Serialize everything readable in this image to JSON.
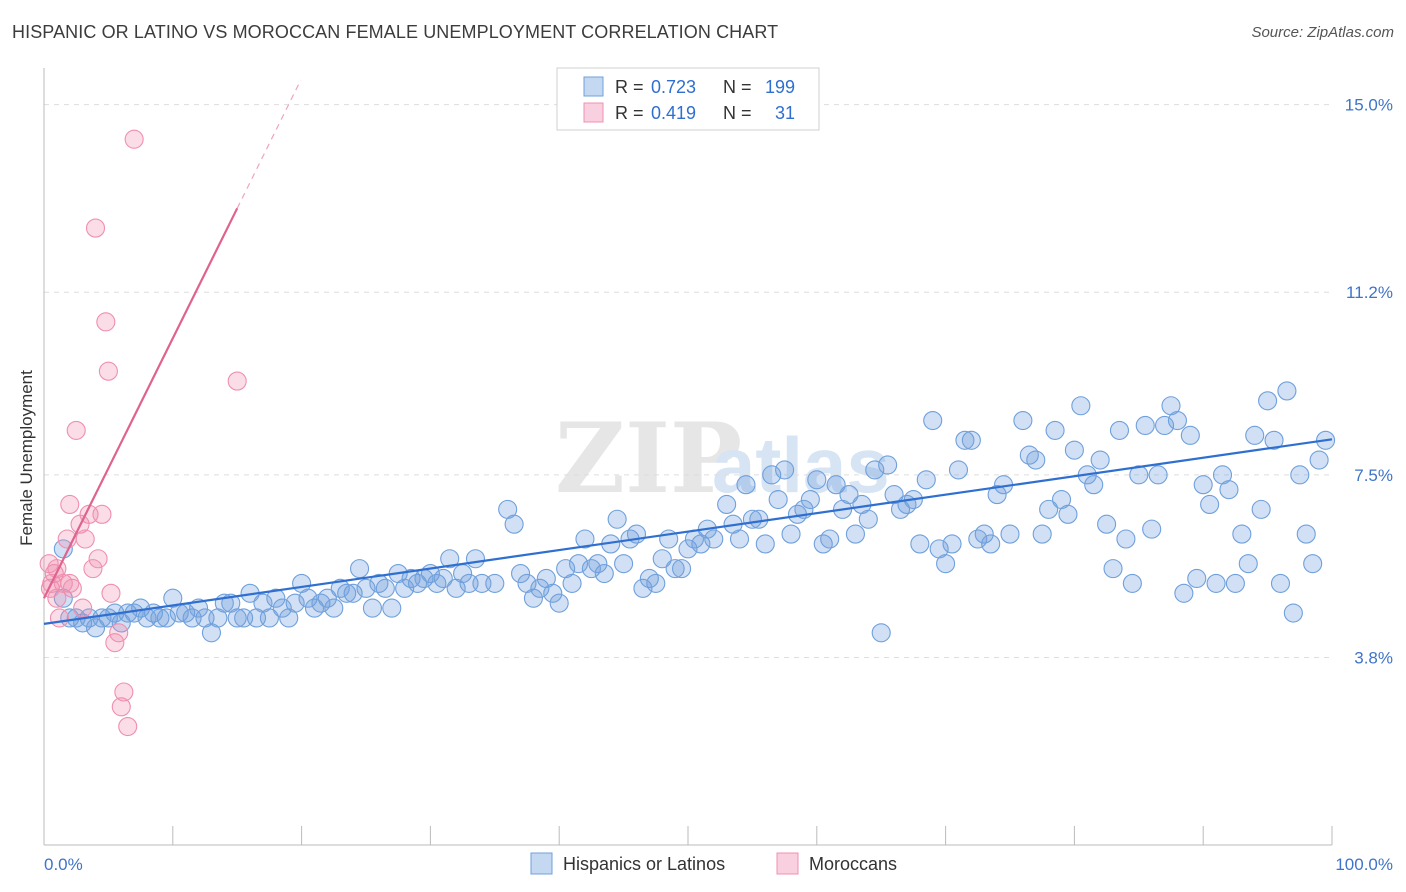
{
  "chart_data": {
    "type": "scatter",
    "title": "HISPANIC OR LATINO VS MOROCCAN FEMALE UNEMPLOYMENT CORRELATION CHART",
    "source": "Source: ZipAtlas.com",
    "ylabel": "Female Unemployment",
    "xlabel": "",
    "x_tick_labels": [
      "0.0%",
      "100.0%"
    ],
    "y_tick_labels": [
      "3.8%",
      "7.5%",
      "11.2%",
      "15.0%"
    ],
    "y_tick_values": [
      3.8,
      7.5,
      11.2,
      15.0
    ],
    "xlim": [
      0,
      100
    ],
    "ylim": [
      0,
      15.5
    ],
    "watermark": {
      "zip": "ZIP",
      "atlas": "atlas"
    },
    "legend": {
      "r_label": "R =",
      "n_label": "N =",
      "rows": [
        {
          "r": "0.723",
          "n": "199",
          "color": "#6fa0dc"
        },
        {
          "r": "0.419",
          "n": "31",
          "color": "#f08fb0"
        }
      ]
    },
    "series": [
      {
        "name": "Hispanics or Latinos",
        "color": "#6fa0dc",
        "line_color": "#2f6fd0",
        "trend": {
          "x0": 0,
          "y0": 4.48,
          "x1": 100,
          "y1": 8.22
        },
        "points": [
          [
            1.5,
            5.0
          ],
          [
            1.5,
            6.0
          ],
          [
            2,
            4.6
          ],
          [
            2.5,
            4.6
          ],
          [
            3,
            4.5
          ],
          [
            3.5,
            4.6
          ],
          [
            4,
            4.4
          ],
          [
            4.5,
            4.6
          ],
          [
            5,
            4.6
          ],
          [
            5.5,
            4.7
          ],
          [
            6,
            4.5
          ],
          [
            6.5,
            4.7
          ],
          [
            7,
            4.7
          ],
          [
            7.5,
            4.8
          ],
          [
            8,
            4.6
          ],
          [
            8.5,
            4.7
          ],
          [
            9,
            4.6
          ],
          [
            9.5,
            4.6
          ],
          [
            10,
            5.0
          ],
          [
            10.5,
            4.7
          ],
          [
            11,
            4.7
          ],
          [
            11.5,
            4.6
          ],
          [
            12,
            4.8
          ],
          [
            12.5,
            4.6
          ],
          [
            13,
            4.3
          ],
          [
            13.5,
            4.6
          ],
          [
            14,
            4.9
          ],
          [
            14.5,
            4.9
          ],
          [
            15,
            4.6
          ],
          [
            15.5,
            4.6
          ],
          [
            16,
            5.1
          ],
          [
            16.5,
            4.6
          ],
          [
            17,
            4.9
          ],
          [
            17.5,
            4.6
          ],
          [
            18,
            5.0
          ],
          [
            18.5,
            4.8
          ],
          [
            19,
            4.6
          ],
          [
            19.5,
            4.9
          ],
          [
            20,
            5.3
          ],
          [
            20.5,
            5.0
          ],
          [
            21,
            4.8
          ],
          [
            21.5,
            4.9
          ],
          [
            22,
            5.0
          ],
          [
            22.5,
            4.8
          ],
          [
            23,
            5.2
          ],
          [
            23.5,
            5.1
          ],
          [
            24,
            5.1
          ],
          [
            24.5,
            5.6
          ],
          [
            25,
            5.2
          ],
          [
            25.5,
            4.8
          ],
          [
            26,
            5.3
          ],
          [
            26.5,
            5.2
          ],
          [
            27,
            4.8
          ],
          [
            27.5,
            5.5
          ],
          [
            28,
            5.2
          ],
          [
            28.5,
            5.4
          ],
          [
            29,
            5.3
          ],
          [
            29.5,
            5.4
          ],
          [
            30,
            5.5
          ],
          [
            30.5,
            5.3
          ],
          [
            31,
            5.4
          ],
          [
            31.5,
            5.8
          ],
          [
            32,
            5.2
          ],
          [
            32.5,
            5.5
          ],
          [
            33,
            5.3
          ],
          [
            33.5,
            5.8
          ],
          [
            34,
            5.3
          ],
          [
            35,
            5.3
          ],
          [
            36,
            6.8
          ],
          [
            36.5,
            6.5
          ],
          [
            37,
            5.5
          ],
          [
            37.5,
            5.3
          ],
          [
            38,
            5.0
          ],
          [
            38.5,
            5.2
          ],
          [
            39,
            5.4
          ],
          [
            39.5,
            5.1
          ],
          [
            40,
            4.9
          ],
          [
            40.5,
            5.6
          ],
          [
            41,
            5.3
          ],
          [
            41.5,
            5.7
          ],
          [
            42,
            6.2
          ],
          [
            42.5,
            5.6
          ],
          [
            43,
            5.7
          ],
          [
            43.5,
            5.5
          ],
          [
            44,
            6.1
          ],
          [
            44.5,
            6.6
          ],
          [
            45,
            5.7
          ],
          [
            45.5,
            6.2
          ],
          [
            46,
            6.3
          ],
          [
            46.5,
            5.2
          ],
          [
            47,
            5.4
          ],
          [
            47.5,
            5.3
          ],
          [
            48,
            5.8
          ],
          [
            48.5,
            6.2
          ],
          [
            49,
            5.6
          ],
          [
            49.5,
            5.6
          ],
          [
            50,
            6.0
          ],
          [
            50.5,
            6.2
          ],
          [
            51,
            6.1
          ],
          [
            51.5,
            6.4
          ],
          [
            52,
            6.2
          ],
          [
            53,
            6.9
          ],
          [
            53.5,
            6.5
          ],
          [
            54,
            6.2
          ],
          [
            54.5,
            7.3
          ],
          [
            55,
            6.6
          ],
          [
            55.5,
            6.6
          ],
          [
            56,
            6.1
          ],
          [
            56.5,
            7.5
          ],
          [
            57,
            7.0
          ],
          [
            57.5,
            7.6
          ],
          [
            58,
            6.3
          ],
          [
            58.5,
            6.7
          ],
          [
            59,
            6.8
          ],
          [
            59.5,
            7.0
          ],
          [
            60,
            7.4
          ],
          [
            60.5,
            6.1
          ],
          [
            61,
            6.2
          ],
          [
            61.5,
            7.3
          ],
          [
            62,
            6.8
          ],
          [
            62.5,
            7.1
          ],
          [
            63,
            6.3
          ],
          [
            63.5,
            6.9
          ],
          [
            64,
            6.6
          ],
          [
            64.5,
            7.6
          ],
          [
            65,
            4.3
          ],
          [
            65.5,
            7.7
          ],
          [
            66,
            7.1
          ],
          [
            66.5,
            6.8
          ],
          [
            67,
            6.9
          ],
          [
            67.5,
            7.0
          ],
          [
            68,
            6.1
          ],
          [
            68.5,
            7.4
          ],
          [
            69,
            8.6
          ],
          [
            69.5,
            6.0
          ],
          [
            70,
            5.7
          ],
          [
            70.5,
            6.1
          ],
          [
            71,
            7.6
          ],
          [
            71.5,
            8.2
          ],
          [
            72,
            8.2
          ],
          [
            72.5,
            6.2
          ],
          [
            73,
            6.3
          ],
          [
            73.5,
            6.1
          ],
          [
            74,
            7.1
          ],
          [
            74.5,
            7.3
          ],
          [
            75,
            6.3
          ],
          [
            76,
            8.6
          ],
          [
            76.5,
            7.9
          ],
          [
            77,
            7.8
          ],
          [
            77.5,
            6.3
          ],
          [
            78,
            6.8
          ],
          [
            78.5,
            8.4
          ],
          [
            79,
            7.0
          ],
          [
            79.5,
            6.7
          ],
          [
            80,
            8.0
          ],
          [
            80.5,
            8.9
          ],
          [
            81,
            7.5
          ],
          [
            81.5,
            7.3
          ],
          [
            82,
            7.8
          ],
          [
            82.5,
            6.5
          ],
          [
            83,
            5.6
          ],
          [
            83.5,
            8.4
          ],
          [
            84,
            6.2
          ],
          [
            84.5,
            5.3
          ],
          [
            85,
            7.5
          ],
          [
            85.5,
            8.5
          ],
          [
            86,
            6.4
          ],
          [
            86.5,
            7.5
          ],
          [
            87,
            8.5
          ],
          [
            87.5,
            8.9
          ],
          [
            88,
            8.6
          ],
          [
            88.5,
            5.1
          ],
          [
            89,
            8.3
          ],
          [
            89.5,
            5.4
          ],
          [
            90,
            7.3
          ],
          [
            90.5,
            6.9
          ],
          [
            91,
            5.3
          ],
          [
            91.5,
            7.5
          ],
          [
            92,
            7.2
          ],
          [
            92.5,
            5.3
          ],
          [
            93,
            6.3
          ],
          [
            93.5,
            5.7
          ],
          [
            94,
            8.3
          ],
          [
            94.5,
            6.8
          ],
          [
            95,
            9.0
          ],
          [
            95.5,
            8.2
          ],
          [
            96,
            5.3
          ],
          [
            96.5,
            9.2
          ],
          [
            97,
            4.7
          ],
          [
            97.5,
            7.5
          ],
          [
            98,
            6.3
          ],
          [
            98.5,
            5.7
          ],
          [
            99,
            7.8
          ],
          [
            99.5,
            8.2
          ]
        ]
      },
      {
        "name": "Moroccans",
        "color": "#f08fb0",
        "line_color": "#e0628f",
        "trend": {
          "x0": 0,
          "y0": 5.0,
          "x1": 15,
          "y1": 12.9
        },
        "points": [
          [
            0.4,
            5.7
          ],
          [
            0.6,
            5.3
          ],
          [
            0.8,
            5.5
          ],
          [
            1.0,
            5.0
          ],
          [
            1.2,
            4.6
          ],
          [
            1.5,
            5.3
          ],
          [
            1.8,
            6.2
          ],
          [
            2.0,
            6.9
          ],
          [
            2.2,
            5.2
          ],
          [
            2.5,
            8.4
          ],
          [
            2.8,
            6.5
          ],
          [
            3.0,
            4.8
          ],
          [
            3.2,
            6.2
          ],
          [
            3.5,
            6.7
          ],
          [
            3.8,
            5.6
          ],
          [
            4.0,
            12.5
          ],
          [
            4.2,
            5.8
          ],
          [
            4.5,
            6.7
          ],
          [
            4.8,
            10.6
          ],
          [
            5.0,
            9.6
          ],
          [
            5.2,
            5.1
          ],
          [
            5.5,
            4.1
          ],
          [
            5.8,
            4.3
          ],
          [
            6.0,
            2.8
          ],
          [
            6.2,
            3.1
          ],
          [
            6.5,
            2.4
          ],
          [
            7.0,
            14.3
          ],
          [
            15,
            9.4
          ],
          [
            0.5,
            5.2
          ],
          [
            1.0,
            5.6
          ],
          [
            2.0,
            5.3
          ]
        ]
      }
    ]
  },
  "bottom_legend": {
    "items": [
      {
        "label": "Hispanics or Latinos",
        "color": "#6fa0dc"
      },
      {
        "label": "Moroccans",
        "color": "#f08fb0"
      }
    ]
  }
}
